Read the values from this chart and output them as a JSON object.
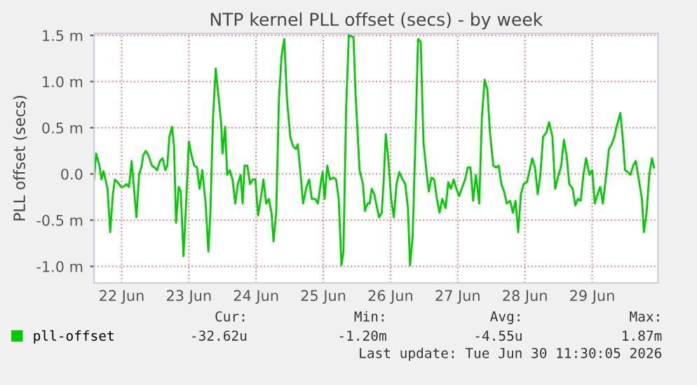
{
  "chart_data": {
    "type": "line",
    "title": "NTP kernel PLL offset (secs) - by week",
    "ylabel": "PLL offset (secs)",
    "xlim": [
      "2026-06-22T02:10",
      "2026-06-30T11:30"
    ],
    "ylim": [
      -1.18,
      1.52
    ],
    "xticks": [
      {
        "value": "2026-06-22T12:00",
        "label": "22 Jun"
      },
      {
        "value": "2026-06-23T12:00",
        "label": "23 Jun"
      },
      {
        "value": "2026-06-24T12:00",
        "label": "24 Jun"
      },
      {
        "value": "2026-06-25T12:00",
        "label": "25 Jun"
      },
      {
        "value": "2026-06-26T12:00",
        "label": "26 Jun"
      },
      {
        "value": "2026-06-27T12:00",
        "label": "27 Jun"
      },
      {
        "value": "2026-06-28T12:00",
        "label": "28 Jun"
      },
      {
        "value": "2026-06-29T12:00",
        "label": "29 Jun"
      }
    ],
    "yticks": [
      {
        "value": -1.0,
        "label": "-1.0 m"
      },
      {
        "value": -0.5,
        "label": "-0.5 m"
      },
      {
        "value": 0.0,
        "label": "0.0"
      },
      {
        "value": 0.5,
        "label": "0.5 m"
      },
      {
        "value": 1.0,
        "label": "1.0 m"
      },
      {
        "value": 1.5,
        "label": "1.5 m"
      }
    ],
    "grid": true,
    "legend": "bottom",
    "marker": "none",
    "line_style": "solid",
    "annotations": [
      "Cur:",
      "Min:",
      "Avg:",
      "Max:",
      "-32.62u",
      "-1.20m",
      "-4.55u",
      "1.87m",
      "Last update: Tue Jun 30 11:30:05 2026"
    ],
    "series": [
      {
        "name": "pll-offset",
        "color": "#00cc00",
        "x": [
          "2026-06-22T02:10",
          "2026-06-22T02:53",
          "2026-06-22T04:05",
          "2026-06-22T04:48",
          "2026-06-22T05:31",
          "2026-06-22T06:14",
          "2026-06-22T06:58",
          "2026-06-22T07:55",
          "2026-06-22T08:53",
          "2026-06-22T09:36",
          "2026-06-22T10:34",
          "2026-06-22T11:46",
          "2026-06-22T12:43",
          "2026-06-22T13:41",
          "2026-06-22T14:38",
          "2026-06-22T15:36",
          "2026-06-22T17:17",
          "2026-06-22T18:14",
          "2026-06-22T19:12",
          "2026-06-22T19:41",
          "2026-06-22T20:38",
          "2026-06-22T21:36",
          "2026-06-22T22:48",
          "2026-06-22T23:46",
          "2026-06-23T00:43",
          "2026-06-23T01:41",
          "2026-06-23T02:38",
          "2026-06-23T03:36",
          "2026-06-23T04:19",
          "2026-06-23T05:02",
          "2026-06-23T06:00",
          "2026-06-23T06:43",
          "2026-06-23T07:26",
          "2026-06-23T08:24",
          "2026-06-23T09:07",
          "2026-06-23T10:05",
          "2026-06-23T11:02",
          "2026-06-23T12:00",
          "2026-06-23T12:58",
          "2026-06-23T13:55",
          "2026-06-23T14:53",
          "2026-06-23T15:50",
          "2026-06-23T16:48",
          "2026-06-23T18:00",
          "2026-06-23T18:58",
          "2026-06-23T19:41",
          "2026-06-23T20:38",
          "2026-06-23T21:36",
          "2026-06-23T22:19",
          "2026-06-23T23:31",
          "2026-06-24T00:00",
          "2026-06-24T00:58",
          "2026-06-24T01:41",
          "2026-06-24T02:38",
          "2026-06-24T03:36",
          "2026-06-24T04:34",
          "2026-06-24T05:31",
          "2026-06-24T06:29",
          "2026-06-24T07:12",
          "2026-06-24T07:55",
          "2026-06-24T08:53",
          "2026-06-24T09:50",
          "2026-06-24T10:48",
          "2026-06-24T11:46",
          "2026-06-24T12:43",
          "2026-06-24T13:41",
          "2026-06-24T14:38",
          "2026-06-24T15:36",
          "2026-06-24T16:34",
          "2026-06-24T17:31",
          "2026-06-24T18:14",
          "2026-06-24T19:12",
          "2026-06-24T20:10",
          "2026-06-24T21:07",
          "2026-06-24T22:05",
          "2026-06-24T23:02",
          "2026-06-25T00:14",
          "2026-06-25T01:12",
          "2026-06-25T02:10",
          "2026-06-25T02:53",
          "2026-06-25T03:50",
          "2026-06-25T04:48",
          "2026-06-25T06:00",
          "2026-06-25T06:58",
          "2026-06-25T07:55",
          "2026-06-25T09:07",
          "2026-06-25T10:05",
          "2026-06-25T11:17",
          "2026-06-25T11:46",
          "2026-06-25T12:29",
          "2026-06-25T13:26",
          "2026-06-25T14:24",
          "2026-06-25T15:36",
          "2026-06-25T16:34",
          "2026-06-25T17:31",
          "2026-06-25T18:29",
          "2026-06-25T19:12",
          "2026-06-25T20:10",
          "2026-06-25T21:07",
          "2026-06-25T22:48",
          "2026-06-25T23:31",
          "2026-06-26T00:58",
          "2026-06-26T02:10",
          "2026-06-26T02:53",
          "2026-06-26T03:50",
          "2026-06-26T04:34",
          "2026-06-26T05:17",
          "2026-06-26T06:14",
          "2026-06-26T07:12",
          "2026-06-26T07:55",
          "2026-06-26T08:53",
          "2026-06-26T09:36",
          "2026-06-26T10:19",
          "2026-06-26T11:17",
          "2026-06-26T12:14",
          "2026-06-26T13:12",
          "2026-06-26T14:10",
          "2026-06-26T15:07",
          "2026-06-26T16:19",
          "2026-06-26T17:17",
          "2026-06-26T18:14",
          "2026-06-26T18:58",
          "2026-06-26T19:55",
          "2026-06-26T20:53",
          "2026-06-26T21:50",
          "2026-06-26T22:48",
          "2026-06-26T23:46",
          "2026-06-27T00:58",
          "2026-06-27T01:41",
          "2026-06-27T02:38",
          "2026-06-27T03:36",
          "2026-06-27T04:34",
          "2026-06-27T05:31",
          "2026-06-27T06:29",
          "2026-06-27T07:41",
          "2026-06-27T08:38",
          "2026-06-27T09:36",
          "2026-06-27T10:34",
          "2026-06-27T11:31",
          "2026-06-27T12:29",
          "2026-06-27T13:26",
          "2026-06-27T14:38",
          "2026-06-27T15:36",
          "2026-06-27T16:34",
          "2026-06-27T17:31",
          "2026-06-27T18:29",
          "2026-06-27T19:41",
          "2026-06-27T20:38",
          "2026-06-27T21:36",
          "2026-06-27T22:34",
          "2026-06-27T23:31",
          "2026-06-28T00:43",
          "2026-06-28T01:41",
          "2026-06-28T02:38",
          "2026-06-28T03:36",
          "2026-06-28T04:34",
          "2026-06-28T05:31",
          "2026-06-28T06:43",
          "2026-06-28T07:41",
          "2026-06-28T08:38",
          "2026-06-28T09:36",
          "2026-06-28T10:34",
          "2026-06-28T11:31",
          "2026-06-28T12:43",
          "2026-06-28T13:41",
          "2026-06-28T14:38",
          "2026-06-28T15:36",
          "2026-06-28T16:34",
          "2026-06-28T17:31",
          "2026-06-28T18:29",
          "2026-06-28T19:41",
          "2026-06-28T20:38",
          "2026-06-28T21:50",
          "2026-06-28T22:48",
          "2026-06-28T23:46",
          "2026-06-29T00:58",
          "2026-06-29T01:55",
          "2026-06-29T02:53",
          "2026-06-29T03:50",
          "2026-06-29T05:02",
          "2026-06-29T06:00",
          "2026-06-29T06:58",
          "2026-06-29T07:55",
          "2026-06-29T08:53",
          "2026-06-29T09:50",
          "2026-06-29T11:02",
          "2026-06-29T12:00",
          "2026-06-29T12:58",
          "2026-06-29T13:55",
          "2026-06-29T14:53",
          "2026-06-29T15:50",
          "2026-06-29T17:02",
          "2026-06-29T18:00",
          "2026-06-29T18:58",
          "2026-06-29T19:55",
          "2026-06-29T20:53",
          "2026-06-29T22:05",
          "2026-06-29T23:02",
          "2026-06-29T23:46",
          "2026-06-30T00:43",
          "2026-06-30T01:41",
          "2026-06-30T02:38",
          "2026-06-30T03:36",
          "2026-06-30T04:34",
          "2026-06-30T05:46",
          "2026-06-30T06:29",
          "2026-06-30T07:26",
          "2026-06-30T08:24",
          "2026-06-30T09:22",
          "2026-06-30T10:05"
        ],
        "values": [
          -0.06,
          0.22,
          0.09,
          -0.06,
          0.03,
          -0.06,
          -0.16,
          -0.63,
          -0.22,
          -0.06,
          -0.09,
          -0.14,
          -0.14,
          -0.11,
          -0.14,
          0.14,
          -0.47,
          -0.01,
          0.09,
          0.2,
          0.25,
          0.2,
          0.09,
          0.07,
          0.04,
          0.14,
          0.17,
          0.04,
          0.09,
          0.4,
          0.51,
          0.3,
          -0.53,
          -0.14,
          -0.19,
          -0.89,
          -0.32,
          0.35,
          0.2,
          0.09,
          0.07,
          -0.16,
          0.04,
          -0.32,
          -0.84,
          -0.42,
          0.61,
          1.14,
          0.92,
          0.56,
          0.22,
          0.51,
          -0.01,
          0.04,
          -0.06,
          -0.32,
          -0.11,
          -0.01,
          -0.32,
          0.09,
          0.09,
          -0.11,
          -0.06,
          -0.06,
          -0.45,
          -0.27,
          -0.06,
          -0.32,
          -0.27,
          -0.42,
          -0.73,
          -0.42,
          0.81,
          1.28,
          1.46,
          0.81,
          0.4,
          0.3,
          0.27,
          0.32,
          0.02,
          -0.32,
          -0.14,
          -0.06,
          -0.27,
          -0.27,
          -0.32,
          -0.06,
          0.02,
          -0.27,
          0.09,
          -0.06,
          -0.04,
          -0.06,
          -0.27,
          -0.99,
          -0.84,
          0.71,
          1.5,
          1.48,
          0.87,
          0.04,
          -0.11,
          -0.4,
          -0.32,
          -0.32,
          -0.16,
          -0.22,
          -0.37,
          -0.47,
          -0.42,
          -0.06,
          0.43,
          0.14,
          -0.27,
          -0.47,
          -0.11,
          0.02,
          -0.06,
          -0.11,
          -0.37,
          -0.99,
          -0.68,
          0.35,
          1.46,
          1.43,
          0.35,
          -0.01,
          -0.19,
          -0.04,
          -0.06,
          -0.27,
          -0.42,
          -0.27,
          -0.37,
          -0.09,
          -0.16,
          -0.06,
          -0.16,
          -0.24,
          -0.16,
          -0.06,
          0.07,
          0.07,
          -0.29,
          -0.01,
          -0.32,
          0.61,
          1.02,
          0.92,
          0.45,
          0.09,
          0.07,
          0.09,
          -0.11,
          -0.19,
          -0.32,
          -0.29,
          -0.42,
          -0.29,
          -0.63,
          -0.22,
          -0.11,
          -0.09,
          0.04,
          0.17,
          0.07,
          -0.22,
          -0.01,
          0.4,
          0.45,
          0.56,
          0.4,
          -0.16,
          -0.04,
          0.09,
          0.37,
          0.2,
          -0.11,
          -0.16,
          -0.34,
          -0.27,
          -0.29,
          -0.01,
          0.17,
          -0.01,
          0.04,
          -0.32,
          -0.22,
          -0.14,
          -0.32,
          -0.01,
          0.27,
          0.32,
          0.4,
          0.53,
          0.66,
          0.35,
          0.04,
          0.02,
          -0.01,
          0.09,
          0.14,
          -0.04,
          -0.27,
          -0.63,
          -0.42,
          -0.01,
          0.17,
          0.07
        ]
      }
    ]
  }
}
